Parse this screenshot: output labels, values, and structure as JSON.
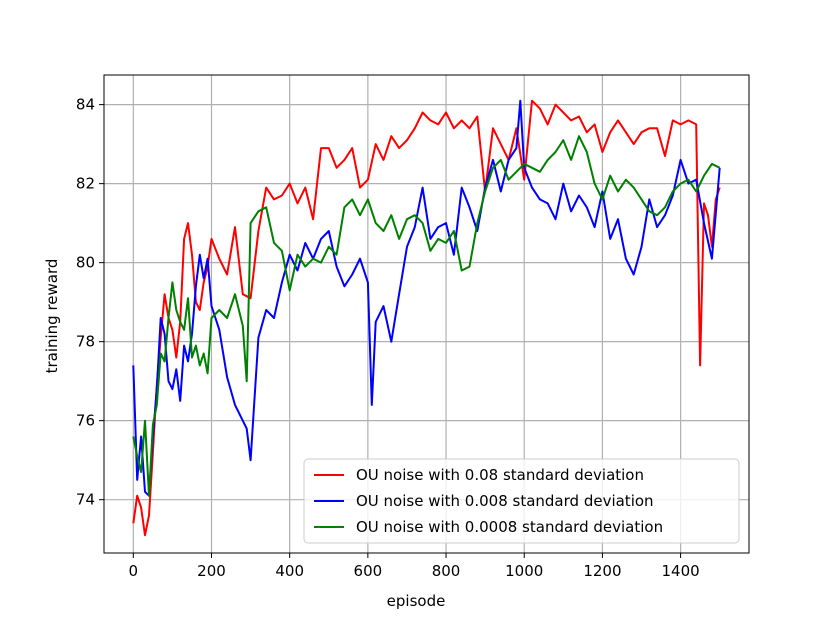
{
  "chart_data": {
    "type": "line",
    "title": "",
    "xlabel": "episode",
    "ylabel": "training reward",
    "xlim": [
      -75,
      1575
    ],
    "ylim": [
      72.65,
      84.75
    ],
    "xticks": [
      0,
      200,
      400,
      600,
      800,
      1000,
      1200,
      1400
    ],
    "yticks": [
      74,
      76,
      78,
      80,
      82,
      84
    ],
    "xtick_labels": [
      "0",
      "200",
      "400",
      "600",
      "800",
      "1000",
      "1200",
      "1400"
    ],
    "ytick_labels": [
      "74",
      "76",
      "78",
      "80",
      "82",
      "84"
    ],
    "grid": true,
    "legend_position": "lower-right",
    "series": [
      {
        "name": "OU noise with 0.08 standard deviation",
        "color": "#ff0000",
        "x": [
          0,
          10,
          20,
          30,
          40,
          50,
          60,
          70,
          80,
          90,
          100,
          110,
          120,
          130,
          140,
          150,
          160,
          170,
          180,
          190,
          200,
          220,
          240,
          260,
          280,
          300,
          320,
          340,
          360,
          380,
          400,
          420,
          440,
          460,
          480,
          500,
          520,
          540,
          560,
          580,
          600,
          620,
          640,
          660,
          680,
          700,
          720,
          740,
          760,
          780,
          800,
          820,
          840,
          860,
          880,
          900,
          920,
          940,
          960,
          980,
          1000,
          1020,
          1040,
          1060,
          1080,
          1100,
          1120,
          1140,
          1160,
          1180,
          1200,
          1220,
          1240,
          1260,
          1280,
          1300,
          1320,
          1340,
          1360,
          1380,
          1400,
          1420,
          1440,
          1450,
          1460,
          1470,
          1480,
          1490,
          1500
        ],
        "y": [
          73.4,
          74.1,
          73.8,
          73.1,
          73.6,
          75.2,
          76.9,
          78.1,
          79.2,
          78.6,
          78.3,
          77.6,
          78.5,
          80.6,
          81.0,
          80.2,
          79.0,
          78.8,
          79.5,
          79.9,
          80.6,
          80.1,
          79.7,
          80.9,
          79.2,
          79.1,
          80.8,
          81.9,
          81.6,
          81.7,
          82.0,
          81.5,
          81.9,
          81.1,
          82.9,
          82.9,
          82.4,
          82.6,
          82.9,
          81.9,
          82.1,
          83.0,
          82.6,
          83.2,
          82.9,
          83.1,
          83.4,
          83.8,
          83.6,
          83.5,
          83.8,
          83.4,
          83.6,
          83.4,
          83.7,
          81.8,
          83.4,
          83.0,
          82.6,
          83.4,
          82.1,
          84.1,
          83.9,
          83.5,
          84.0,
          83.8,
          83.6,
          83.7,
          83.3,
          83.5,
          82.8,
          83.3,
          83.6,
          83.3,
          83.0,
          83.3,
          83.4,
          83.4,
          82.7,
          83.6,
          83.5,
          83.6,
          83.5,
          77.4,
          81.5,
          81.2,
          80.4,
          81.6,
          81.9
        ]
      },
      {
        "name": "OU noise with 0.008 standard deviation",
        "color": "#0000ff",
        "x": [
          0,
          10,
          20,
          30,
          40,
          50,
          60,
          70,
          80,
          90,
          100,
          110,
          120,
          130,
          140,
          150,
          160,
          170,
          180,
          190,
          200,
          220,
          240,
          260,
          280,
          290,
          300,
          320,
          340,
          360,
          380,
          400,
          420,
          440,
          460,
          480,
          500,
          520,
          540,
          560,
          580,
          600,
          610,
          620,
          640,
          660,
          680,
          700,
          720,
          740,
          760,
          780,
          800,
          820,
          840,
          860,
          880,
          900,
          920,
          940,
          960,
          980,
          990,
          1000,
          1020,
          1040,
          1060,
          1080,
          1100,
          1120,
          1140,
          1160,
          1180,
          1200,
          1220,
          1240,
          1260,
          1280,
          1300,
          1320,
          1340,
          1360,
          1380,
          1400,
          1420,
          1440,
          1460,
          1480,
          1500
        ],
        "y": [
          77.4,
          74.5,
          75.6,
          74.2,
          74.1,
          75.6,
          76.8,
          78.6,
          78.2,
          77.0,
          76.8,
          77.3,
          76.5,
          77.9,
          77.5,
          78.2,
          79.4,
          80.2,
          79.6,
          80.1,
          78.9,
          78.3,
          77.1,
          76.4,
          76.0,
          75.8,
          75.0,
          78.1,
          78.8,
          78.6,
          79.5,
          80.2,
          79.8,
          80.5,
          80.1,
          80.6,
          80.8,
          79.9,
          79.4,
          79.7,
          80.1,
          79.5,
          76.4,
          78.5,
          78.9,
          78.0,
          79.2,
          80.4,
          80.9,
          81.9,
          80.6,
          80.9,
          81.0,
          80.2,
          81.9,
          81.4,
          80.8,
          81.9,
          82.6,
          81.8,
          82.6,
          82.9,
          84.1,
          82.4,
          81.9,
          81.6,
          81.5,
          81.1,
          82.0,
          81.3,
          81.7,
          81.4,
          80.9,
          81.8,
          80.6,
          81.1,
          80.1,
          79.7,
          80.4,
          81.6,
          80.9,
          81.2,
          81.7,
          82.6,
          82.0,
          82.1,
          81.0,
          80.1,
          82.4
        ]
      },
      {
        "name": "OU noise with 0.0008 standard deviation",
        "color": "#008000",
        "x": [
          0,
          10,
          20,
          30,
          40,
          50,
          60,
          70,
          80,
          90,
          100,
          110,
          120,
          130,
          140,
          150,
          160,
          170,
          180,
          190,
          200,
          220,
          240,
          260,
          280,
          290,
          300,
          320,
          340,
          360,
          380,
          400,
          420,
          440,
          460,
          480,
          500,
          520,
          540,
          560,
          580,
          600,
          620,
          640,
          660,
          680,
          700,
          720,
          740,
          760,
          780,
          800,
          820,
          840,
          860,
          880,
          900,
          920,
          940,
          960,
          980,
          1000,
          1020,
          1040,
          1060,
          1080,
          1100,
          1120,
          1140,
          1160,
          1180,
          1200,
          1220,
          1240,
          1260,
          1280,
          1300,
          1320,
          1340,
          1360,
          1380,
          1400,
          1420,
          1440,
          1460,
          1480,
          1500
        ],
        "y": [
          75.6,
          75.1,
          74.7,
          76.0,
          74.1,
          75.9,
          76.4,
          77.7,
          77.5,
          78.6,
          79.5,
          78.8,
          78.5,
          78.3,
          79.1,
          77.6,
          77.9,
          77.4,
          77.7,
          77.2,
          78.6,
          78.8,
          78.6,
          79.2,
          78.4,
          77.0,
          81.0,
          81.3,
          81.4,
          80.5,
          80.3,
          79.3,
          80.2,
          79.9,
          80.1,
          80.0,
          80.4,
          80.2,
          81.4,
          81.6,
          81.2,
          81.6,
          81.0,
          80.8,
          81.2,
          80.6,
          81.1,
          81.2,
          81.0,
          80.3,
          80.6,
          80.5,
          80.8,
          79.8,
          79.9,
          81.0,
          81.8,
          82.4,
          82.6,
          82.1,
          82.3,
          82.5,
          82.4,
          82.3,
          82.6,
          82.8,
          83.1,
          82.6,
          83.2,
          82.8,
          82.0,
          81.6,
          82.2,
          81.8,
          82.1,
          81.9,
          81.6,
          81.3,
          81.2,
          81.4,
          81.8,
          82.0,
          82.1,
          81.8,
          82.2,
          82.5,
          82.4
        ]
      }
    ]
  }
}
